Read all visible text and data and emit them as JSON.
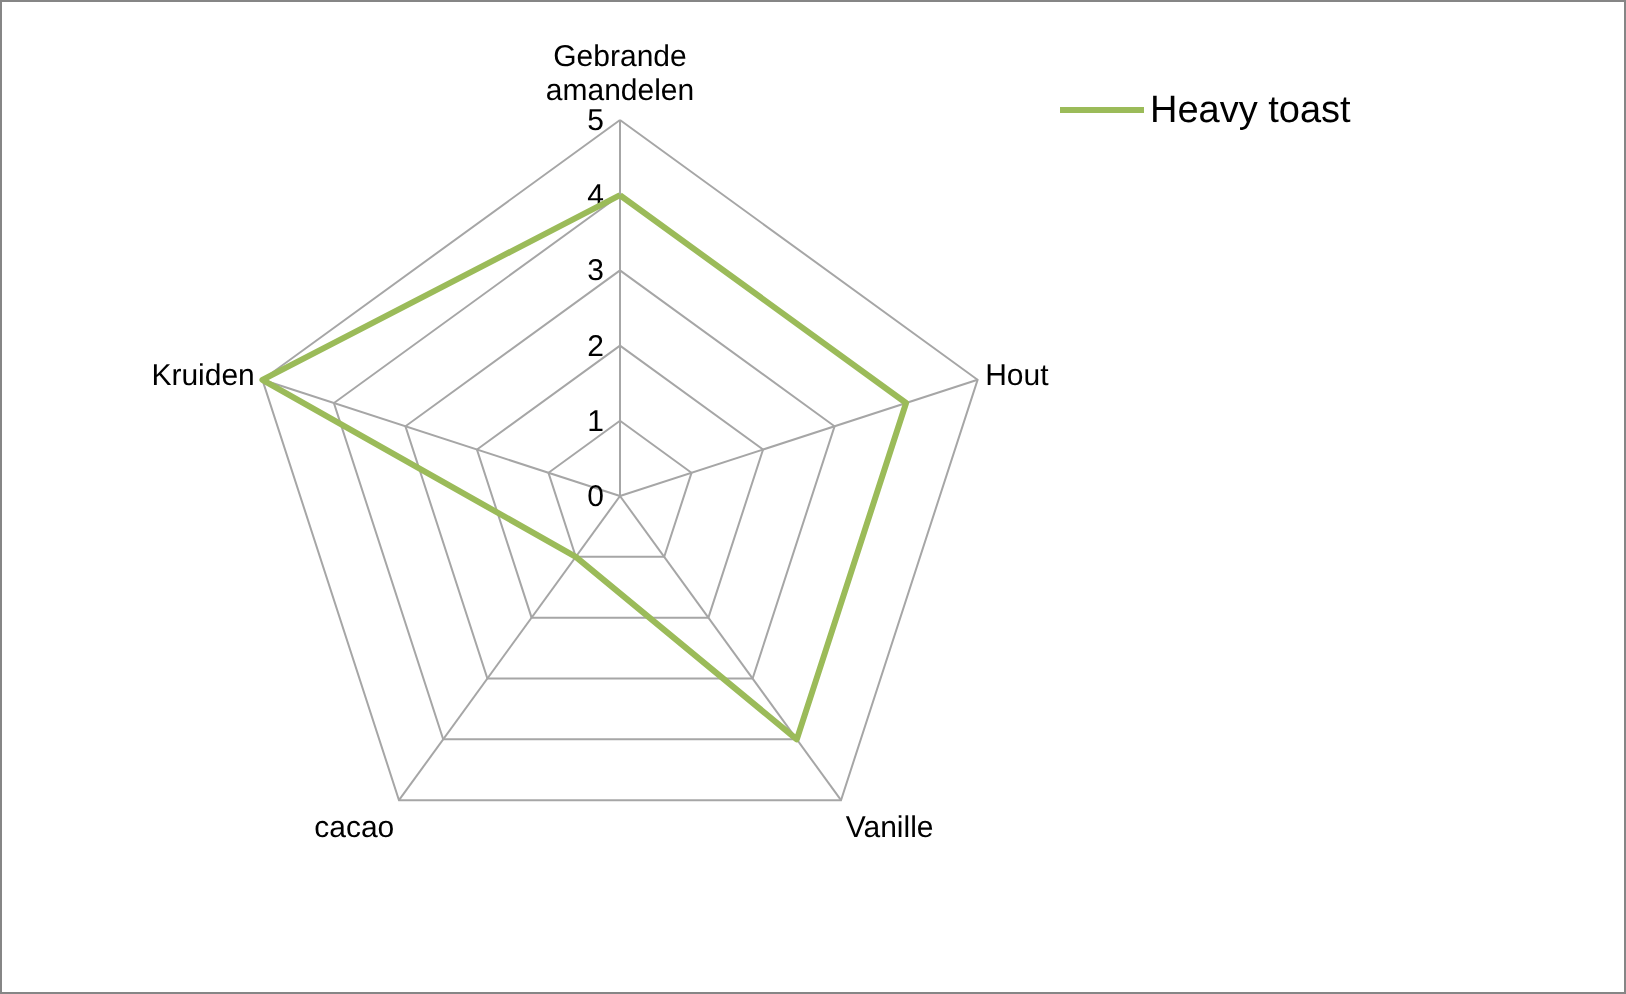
{
  "chart_data": {
    "type": "radar",
    "categories": [
      "Gebrande amandelen",
      "Hout",
      "Vanille",
      "cacao",
      "Kruiden"
    ],
    "series": [
      {
        "name": "Heavy toast",
        "color": "#9bbb59",
        "values": [
          4,
          4,
          4,
          1,
          5
        ]
      }
    ],
    "ylim": [
      0,
      5
    ],
    "yticks": [
      0,
      1,
      2,
      3,
      4,
      5
    ],
    "grid": true,
    "legend": "top right"
  }
}
